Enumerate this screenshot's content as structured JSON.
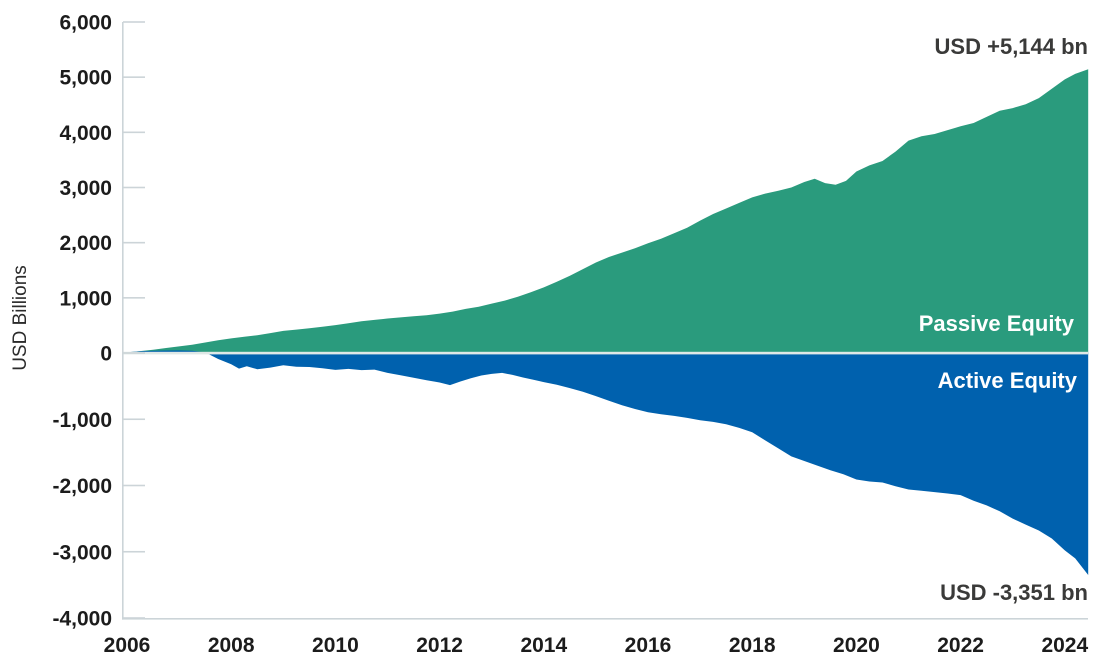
{
  "chart": {
    "y_axis_title": "USD Billions",
    "annotation_passive": "USD +5,144 bn",
    "annotation_active": "USD -3,351 bn",
    "label_passive": "Passive Equity",
    "label_active": "Active Equity"
  },
  "colors": {
    "passive_green": "#2A9B7D",
    "active_blue": "#0061AE",
    "axis_gray": "#ccd4d8",
    "zero_line": "#dfe8e6",
    "tick_text": "#1c1c1c",
    "annotation_text": "#3a3a39"
  },
  "chart_data": {
    "type": "area",
    "title": "",
    "xlabel": "",
    "ylabel": "USD Billions",
    "xlim": [
      2006,
      2024.5
    ],
    "ylim": [
      -4000,
      6000
    ],
    "grid": false,
    "zero_line": true,
    "legend_position": "in-plot-right",
    "x_ticks": [
      2006,
      2008,
      2010,
      2012,
      2014,
      2016,
      2018,
      2020,
      2022,
      2024
    ],
    "y_ticks": [
      6000,
      5000,
      4000,
      3000,
      2000,
      1000,
      0,
      -1000,
      -2000,
      -3000,
      -4000
    ],
    "series": [
      {
        "name": "Passive Equity",
        "color": "#2A9B7D",
        "final_value": 5144,
        "final_label": "USD +5,144 bn",
        "points": [
          [
            2006.0,
            10
          ],
          [
            2006.25,
            35
          ],
          [
            2006.5,
            60
          ],
          [
            2006.75,
            90
          ],
          [
            2007.0,
            120
          ],
          [
            2007.25,
            150
          ],
          [
            2007.5,
            190
          ],
          [
            2007.75,
            230
          ],
          [
            2008.0,
            265
          ],
          [
            2008.25,
            295
          ],
          [
            2008.5,
            320
          ],
          [
            2008.75,
            360
          ],
          [
            2009.0,
            400
          ],
          [
            2009.25,
            425
          ],
          [
            2009.5,
            450
          ],
          [
            2009.75,
            475
          ],
          [
            2010.0,
            505
          ],
          [
            2010.25,
            540
          ],
          [
            2010.5,
            575
          ],
          [
            2010.75,
            600
          ],
          [
            2011.0,
            625
          ],
          [
            2011.25,
            645
          ],
          [
            2011.5,
            665
          ],
          [
            2011.75,
            685
          ],
          [
            2012.0,
            715
          ],
          [
            2012.25,
            750
          ],
          [
            2012.5,
            800
          ],
          [
            2012.75,
            840
          ],
          [
            2013.0,
            895
          ],
          [
            2013.25,
            950
          ],
          [
            2013.5,
            1020
          ],
          [
            2013.75,
            1100
          ],
          [
            2014.0,
            1190
          ],
          [
            2014.25,
            1290
          ],
          [
            2014.5,
            1400
          ],
          [
            2014.75,
            1520
          ],
          [
            2015.0,
            1640
          ],
          [
            2015.25,
            1740
          ],
          [
            2015.5,
            1820
          ],
          [
            2015.75,
            1900
          ],
          [
            2016.0,
            1990
          ],
          [
            2016.25,
            2070
          ],
          [
            2016.5,
            2170
          ],
          [
            2016.75,
            2270
          ],
          [
            2017.0,
            2400
          ],
          [
            2017.25,
            2520
          ],
          [
            2017.5,
            2620
          ],
          [
            2017.75,
            2720
          ],
          [
            2018.0,
            2820
          ],
          [
            2018.25,
            2890
          ],
          [
            2018.5,
            2940
          ],
          [
            2018.75,
            3000
          ],
          [
            2019.0,
            3100
          ],
          [
            2019.2,
            3160
          ],
          [
            2019.4,
            3080
          ],
          [
            2019.6,
            3050
          ],
          [
            2019.8,
            3120
          ],
          [
            2020.0,
            3290
          ],
          [
            2020.25,
            3400
          ],
          [
            2020.5,
            3480
          ],
          [
            2020.75,
            3650
          ],
          [
            2021.0,
            3850
          ],
          [
            2021.25,
            3930
          ],
          [
            2021.5,
            3970
          ],
          [
            2021.75,
            4040
          ],
          [
            2022.0,
            4110
          ],
          [
            2022.25,
            4170
          ],
          [
            2022.5,
            4280
          ],
          [
            2022.75,
            4390
          ],
          [
            2023.0,
            4440
          ],
          [
            2023.25,
            4510
          ],
          [
            2023.5,
            4620
          ],
          [
            2023.75,
            4790
          ],
          [
            2024.0,
            4960
          ],
          [
            2024.2,
            5060
          ],
          [
            2024.45,
            5144
          ]
        ]
      },
      {
        "name": "Active Equity",
        "color": "#0061AE",
        "final_value": -3351,
        "final_label": "USD -3,351 bn",
        "points": [
          [
            2006.0,
            15
          ],
          [
            2006.25,
            30
          ],
          [
            2006.5,
            40
          ],
          [
            2006.75,
            45
          ],
          [
            2007.0,
            48
          ],
          [
            2007.25,
            40
          ],
          [
            2007.5,
            10
          ],
          [
            2007.75,
            -90
          ],
          [
            2008.0,
            -170
          ],
          [
            2008.15,
            -235
          ],
          [
            2008.3,
            -200
          ],
          [
            2008.5,
            -245
          ],
          [
            2008.75,
            -220
          ],
          [
            2009.0,
            -185
          ],
          [
            2009.25,
            -208
          ],
          [
            2009.5,
            -212
          ],
          [
            2009.75,
            -230
          ],
          [
            2010.0,
            -255
          ],
          [
            2010.25,
            -240
          ],
          [
            2010.5,
            -258
          ],
          [
            2010.75,
            -250
          ],
          [
            2011.0,
            -300
          ],
          [
            2011.25,
            -335
          ],
          [
            2011.5,
            -375
          ],
          [
            2011.75,
            -410
          ],
          [
            2012.0,
            -445
          ],
          [
            2012.2,
            -485
          ],
          [
            2012.4,
            -430
          ],
          [
            2012.6,
            -380
          ],
          [
            2012.8,
            -340
          ],
          [
            2013.0,
            -315
          ],
          [
            2013.2,
            -300
          ],
          [
            2013.4,
            -330
          ],
          [
            2013.6,
            -370
          ],
          [
            2013.8,
            -405
          ],
          [
            2014.0,
            -440
          ],
          [
            2014.25,
            -480
          ],
          [
            2014.5,
            -530
          ],
          [
            2014.75,
            -585
          ],
          [
            2015.0,
            -650
          ],
          [
            2015.25,
            -720
          ],
          [
            2015.5,
            -790
          ],
          [
            2015.75,
            -845
          ],
          [
            2016.0,
            -895
          ],
          [
            2016.25,
            -925
          ],
          [
            2016.5,
            -950
          ],
          [
            2016.75,
            -980
          ],
          [
            2017.0,
            -1015
          ],
          [
            2017.25,
            -1040
          ],
          [
            2017.5,
            -1075
          ],
          [
            2017.75,
            -1130
          ],
          [
            2018.0,
            -1195
          ],
          [
            2018.25,
            -1320
          ],
          [
            2018.5,
            -1440
          ],
          [
            2018.75,
            -1560
          ],
          [
            2019.0,
            -1630
          ],
          [
            2019.25,
            -1700
          ],
          [
            2019.5,
            -1770
          ],
          [
            2019.75,
            -1830
          ],
          [
            2020.0,
            -1910
          ],
          [
            2020.25,
            -1940
          ],
          [
            2020.5,
            -1955
          ],
          [
            2020.75,
            -2010
          ],
          [
            2021.0,
            -2060
          ],
          [
            2021.25,
            -2080
          ],
          [
            2021.5,
            -2100
          ],
          [
            2021.75,
            -2120
          ],
          [
            2022.0,
            -2145
          ],
          [
            2022.25,
            -2230
          ],
          [
            2022.5,
            -2300
          ],
          [
            2022.75,
            -2390
          ],
          [
            2023.0,
            -2500
          ],
          [
            2023.25,
            -2590
          ],
          [
            2023.5,
            -2680
          ],
          [
            2023.75,
            -2800
          ],
          [
            2024.0,
            -2980
          ],
          [
            2024.2,
            -3100
          ],
          [
            2024.45,
            -3351
          ]
        ]
      }
    ]
  }
}
